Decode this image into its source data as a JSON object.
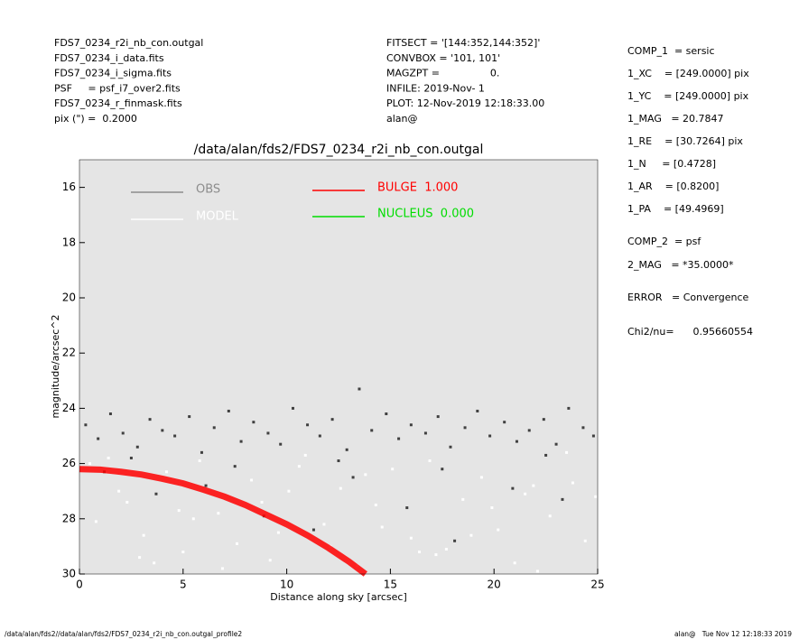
{
  "chart_data": {
    "type": "scatter",
    "title": "/data/alan/fds2/FDS7_0234_r2i_nb_con.outgal",
    "xlabel": "Distance along sky [arcsec]",
    "ylabel": "magnitude/arcsec^2",
    "header_left": [
      "FDS7_0234_r2i_nb_con.outgal",
      "FDS7_0234_i_data.fits",
      "FDS7_0234_i_sigma.fits",
      "PSF     = psf_i7_over2.fits",
      "FDS7_0234_r_finmask.fits",
      "pix (\") =  0.2000"
    ],
    "header_middle": [
      "FITSECT = '[144:352,144:352]'",
      "CONVBOX = '101, 101'",
      "MAGZPT =                0.",
      "INFILE: 2019-Nov- 1",
      "PLOT: 12-Nov-2019 12:18:33.00",
      "alan@"
    ],
    "params": [
      "COMP_1  = sersic",
      "1_XC    = [249.0000] pix",
      "1_YC    = [249.0000] pix",
      "1_MAG   = 20.7847",
      "1_RE    = [30.7264] pix",
      "1_N     = [0.4728]",
      "1_AR    = [0.8200]",
      "1_PA    = [49.4969]",
      "COMP_2  = psf",
      "2_MAG   = *35.0000*",
      "ERROR   = Convergence",
      "Chi2/nu=      0.95660554"
    ],
    "footer_left": "/data/alan/fds2//data/alan/fds2/FDS7_0234_r2i_nb_con.outgal_profile2",
    "footer_right": "alan@   Tue Nov 12 12:18:33 2019",
    "xlim": [
      0,
      25
    ],
    "xticks": [
      0,
      5,
      10,
      15,
      20,
      25
    ],
    "ylim": [
      30,
      15
    ],
    "yticks": [
      16,
      18,
      20,
      22,
      24,
      26,
      28,
      30
    ],
    "series": [
      {
        "name": "OBS",
        "color": "#404040",
        "legend_color": "#8c8c8c",
        "x": [
          0.3,
          0.9,
          1.5,
          2.1,
          2.8,
          3.4,
          4.0,
          4.6,
          5.3,
          5.9,
          6.5,
          7.2,
          7.8,
          8.4,
          9.1,
          9.7,
          10.3,
          11.0,
          11.6,
          12.2,
          12.9,
          13.5,
          14.1,
          14.8,
          15.4,
          16.0,
          16.7,
          17.3,
          17.9,
          18.6,
          19.2,
          19.8,
          20.5,
          21.1,
          21.7,
          22.4,
          23.0,
          23.6,
          24.3,
          24.8,
          1.2,
          3.7,
          6.1,
          8.9,
          11.3,
          13.2,
          15.8,
          18.1,
          20.9,
          23.3,
          2.5,
          7.5,
          12.5,
          17.5,
          22.5
        ],
        "values": [
          24.6,
          25.1,
          24.2,
          24.9,
          25.4,
          24.4,
          24.8,
          25.0,
          24.3,
          25.6,
          24.7,
          24.1,
          25.2,
          24.5,
          24.9,
          25.3,
          24.0,
          24.6,
          25.0,
          24.4,
          25.5,
          23.3,
          24.8,
          24.2,
          25.1,
          24.6,
          24.9,
          24.3,
          25.4,
          24.7,
          24.1,
          25.0,
          24.5,
          25.2,
          24.8,
          24.4,
          25.3,
          24.0,
          24.7,
          25.0,
          26.3,
          27.1,
          26.8,
          27.9,
          28.4,
          26.5,
          27.6,
          28.8,
          26.9,
          27.3,
          25.8,
          26.1,
          25.9,
          26.2,
          25.7
        ]
      },
      {
        "name": "MODEL",
        "color": "#ffffff",
        "legend_color": "#ffffff",
        "x": [
          0.5,
          1.4,
          2.3,
          3.1,
          4.2,
          5.0,
          5.8,
          6.7,
          7.6,
          8.3,
          9.2,
          10.1,
          10.9,
          11.8,
          12.6,
          13.4,
          14.3,
          15.1,
          16.0,
          16.9,
          17.7,
          18.5,
          19.4,
          20.2,
          21.0,
          21.9,
          22.7,
          23.5,
          24.4,
          24.9,
          0.8,
          2.9,
          4.8,
          6.9,
          9.6,
          12.1,
          14.6,
          17.2,
          19.9,
          22.1,
          1.9,
          5.5,
          8.8,
          13.8,
          18.9,
          23.8,
          3.6,
          10.6,
          16.4,
          21.5
        ],
        "values": [
          26.0,
          25.8,
          27.4,
          28.6,
          26.3,
          29.2,
          25.9,
          27.8,
          28.9,
          26.6,
          29.5,
          27.0,
          25.7,
          28.2,
          26.9,
          29.7,
          27.5,
          26.2,
          28.7,
          25.9,
          29.1,
          27.3,
          26.5,
          28.4,
          29.6,
          26.8,
          27.9,
          25.6,
          28.8,
          27.2,
          28.1,
          29.4,
          27.7,
          29.8,
          28.5,
          29.0,
          28.3,
          29.3,
          27.6,
          29.9,
          27.0,
          28.0,
          27.4,
          26.4,
          28.6,
          26.7,
          29.6,
          26.1,
          29.2,
          27.1
        ]
      },
      {
        "name": "BULGE  1.000",
        "color": "#ff0000",
        "legend_color": "#ff0000",
        "line": true,
        "x": [
          0,
          1,
          2,
          3,
          4,
          5,
          6,
          7,
          8,
          9,
          10,
          11,
          12,
          13,
          13.8
        ],
        "values": [
          26.2,
          26.22,
          26.3,
          26.4,
          26.55,
          26.72,
          26.95,
          27.2,
          27.5,
          27.85,
          28.2,
          28.6,
          29.05,
          29.55,
          30
        ]
      },
      {
        "name": "NUCLEUS  0.000",
        "color": "#00dd00",
        "legend_color": "#00dd00",
        "line": true,
        "x": [],
        "values": []
      }
    ]
  }
}
